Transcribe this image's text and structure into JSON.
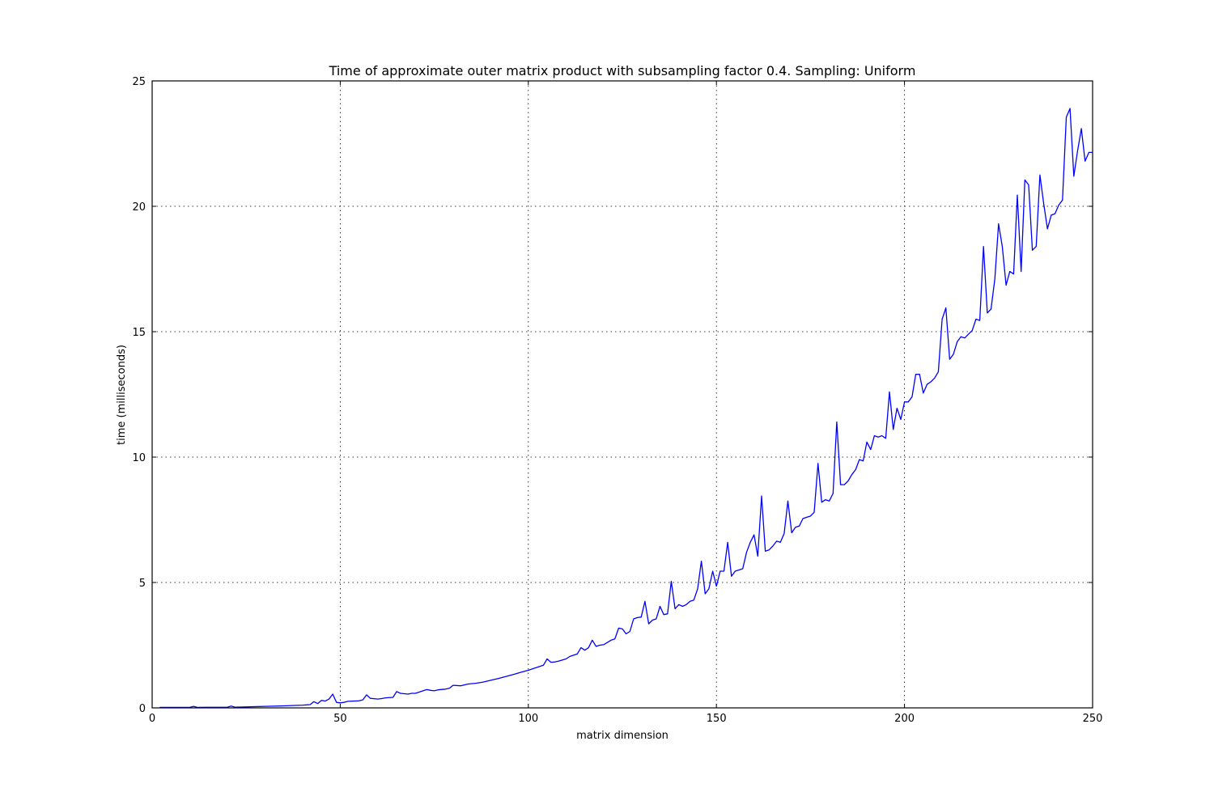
{
  "chart_data": {
    "type": "line",
    "title": "Time of approximate outer matrix product with subsampling factor 0.4. Sampling: Uniform",
    "xlabel": "matrix dimension",
    "ylabel": "time (milliseconds)",
    "xlim": [
      0,
      250
    ],
    "ylim": [
      0,
      25
    ],
    "xticks": [
      0,
      50,
      100,
      150,
      200,
      250
    ],
    "yticks": [
      0,
      5,
      10,
      15,
      20,
      25
    ],
    "grid": true,
    "line_color": "#0000ff",
    "series": [
      {
        "x": [
          2,
          5,
          10,
          11,
          12,
          20,
          21,
          22,
          25,
          30,
          35,
          40,
          42,
          43,
          44,
          45,
          46,
          47,
          48,
          49,
          50,
          51,
          52,
          55,
          56,
          57,
          58,
          60,
          61,
          62,
          64,
          65,
          66,
          68,
          69,
          70,
          72,
          73,
          74,
          75,
          76,
          78,
          79,
          80,
          82,
          84,
          86,
          88,
          90,
          92,
          94,
          96,
          98,
          100,
          102,
          104,
          105,
          106,
          107,
          108,
          110,
          111,
          112,
          113,
          114,
          115,
          116,
          117,
          118,
          119,
          120,
          122,
          123,
          124,
          125,
          126,
          127,
          128,
          129,
          130,
          131,
          132,
          133,
          134,
          135,
          136,
          137,
          138,
          139,
          140,
          141,
          142,
          143,
          144,
          145,
          146,
          147,
          148,
          149,
          150,
          151,
          152,
          153,
          154,
          155,
          156,
          157,
          158,
          159,
          160,
          161,
          162,
          163,
          164,
          165,
          166,
          167,
          168,
          169,
          170,
          171,
          172,
          173,
          174,
          175,
          176,
          177,
          178,
          179,
          180,
          181,
          182,
          183,
          184,
          185,
          186,
          187,
          188,
          189,
          190,
          191,
          192,
          193,
          194,
          195,
          196,
          197,
          198,
          199,
          200,
          201,
          202,
          203,
          204,
          205,
          206,
          207,
          208,
          209,
          210,
          211,
          212,
          213,
          214,
          215,
          216,
          217,
          218,
          219,
          220,
          221,
          222,
          223,
          224,
          225,
          226,
          227,
          228,
          229,
          230,
          231,
          232,
          233,
          234,
          235,
          236,
          237,
          238,
          239,
          240,
          241,
          242,
          243,
          244,
          245,
          246,
          247,
          248,
          249,
          250
        ],
        "y": [
          0.02,
          0.02,
          0.02,
          0.06,
          0.02,
          0.03,
          0.07,
          0.03,
          0.04,
          0.06,
          0.08,
          0.11,
          0.13,
          0.25,
          0.17,
          0.3,
          0.27,
          0.35,
          0.55,
          0.22,
          0.2,
          0.22,
          0.26,
          0.28,
          0.32,
          0.52,
          0.38,
          0.35,
          0.37,
          0.4,
          0.42,
          0.65,
          0.58,
          0.55,
          0.58,
          0.58,
          0.68,
          0.73,
          0.7,
          0.68,
          0.72,
          0.75,
          0.78,
          0.9,
          0.88,
          0.95,
          0.98,
          1.03,
          1.1,
          1.17,
          1.25,
          1.33,
          1.42,
          1.5,
          1.6,
          1.7,
          1.95,
          1.82,
          1.83,
          1.86,
          1.95,
          2.05,
          2.1,
          2.15,
          2.4,
          2.3,
          2.4,
          2.7,
          2.45,
          2.5,
          2.52,
          2.7,
          2.75,
          3.18,
          3.15,
          2.95,
          3.05,
          3.55,
          3.6,
          3.62,
          4.25,
          3.35,
          3.5,
          3.55,
          4.05,
          3.72,
          3.75,
          5.05,
          3.95,
          4.12,
          4.05,
          4.12,
          4.25,
          4.3,
          4.75,
          5.85,
          4.55,
          4.75,
          5.45,
          4.85,
          5.45,
          5.45,
          6.6,
          5.25,
          5.45,
          5.5,
          5.55,
          6.2,
          6.6,
          6.9,
          6.05,
          8.45,
          6.25,
          6.3,
          6.45,
          6.65,
          6.6,
          6.95,
          8.25,
          6.98,
          7.2,
          7.25,
          7.55,
          7.6,
          7.65,
          7.8,
          9.75,
          8.2,
          8.3,
          8.25,
          8.55,
          11.4,
          8.9,
          8.9,
          9.05,
          9.3,
          9.5,
          9.9,
          9.85,
          10.6,
          10.3,
          10.85,
          10.8,
          10.85,
          10.75,
          12.6,
          11.1,
          11.95,
          11.5,
          12.2,
          12.2,
          12.4,
          13.3,
          13.3,
          12.55,
          12.9,
          13.0,
          13.15,
          13.4,
          15.5,
          15.95,
          13.9,
          14.1,
          14.6,
          14.8,
          14.75,
          14.9,
          15.05,
          15.5,
          15.45,
          18.4,
          15.75,
          15.9,
          17.1,
          19.3,
          18.4,
          16.85,
          17.4,
          17.3,
          20.45,
          17.4,
          21.05,
          20.85,
          18.25,
          18.4,
          21.25,
          20.1,
          19.1,
          19.65,
          19.7,
          20.05,
          20.25,
          23.55,
          23.9,
          21.2,
          22.2,
          23.1,
          21.8,
          22.15,
          22.15
        ]
      }
    ]
  }
}
